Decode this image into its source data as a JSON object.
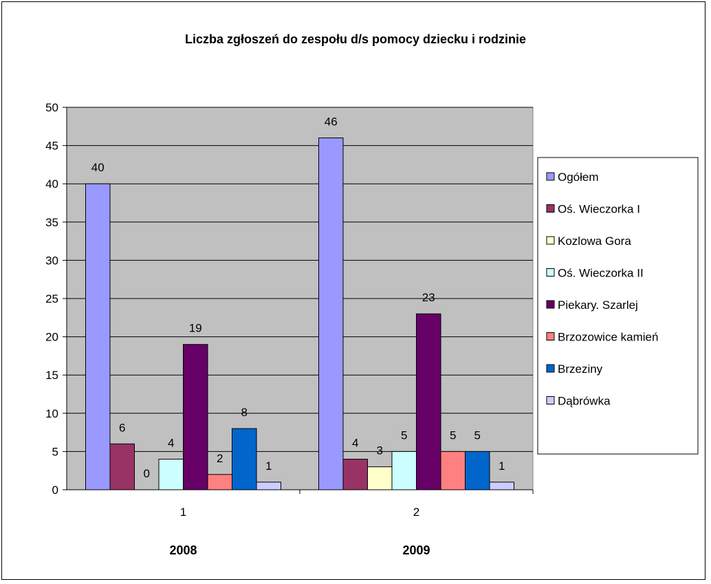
{
  "chart_data": {
    "type": "bar",
    "title": "Liczba zgłoszeń do zespołu d/s pomocy dziecku i rodzinie",
    "categories": [
      "1",
      "2"
    ],
    "group_labels": [
      "2008",
      "2009"
    ],
    "ylim": [
      0,
      50
    ],
    "yticks": [
      0,
      5,
      10,
      15,
      20,
      25,
      30,
      35,
      40,
      45,
      50
    ],
    "grid": true,
    "legend_position": "right",
    "series": [
      {
        "name": "Ogółem",
        "values": [
          40,
          46
        ],
        "color": "#9999ff"
      },
      {
        "name": "Oś. Wieczorka I",
        "values": [
          6,
          4
        ],
        "color": "#993366"
      },
      {
        "name": "Kozlowa Gora",
        "values": [
          0,
          3
        ],
        "color": "#ffffcc"
      },
      {
        "name": "Oś. Wieczorka II",
        "values": [
          4,
          5
        ],
        "color": "#ccffff"
      },
      {
        "name": "Piekary. Szarlej",
        "values": [
          19,
          23
        ],
        "color": "#660066"
      },
      {
        "name": "Brzozowice kamień",
        "values": [
          2,
          5
        ],
        "color": "#ff8080"
      },
      {
        "name": "Brzeziny",
        "values": [
          8,
          5
        ],
        "color": "#0066cc"
      },
      {
        "name": "Dąbrówka",
        "values": [
          1,
          1
        ],
        "color": "#ccccff"
      }
    ]
  }
}
